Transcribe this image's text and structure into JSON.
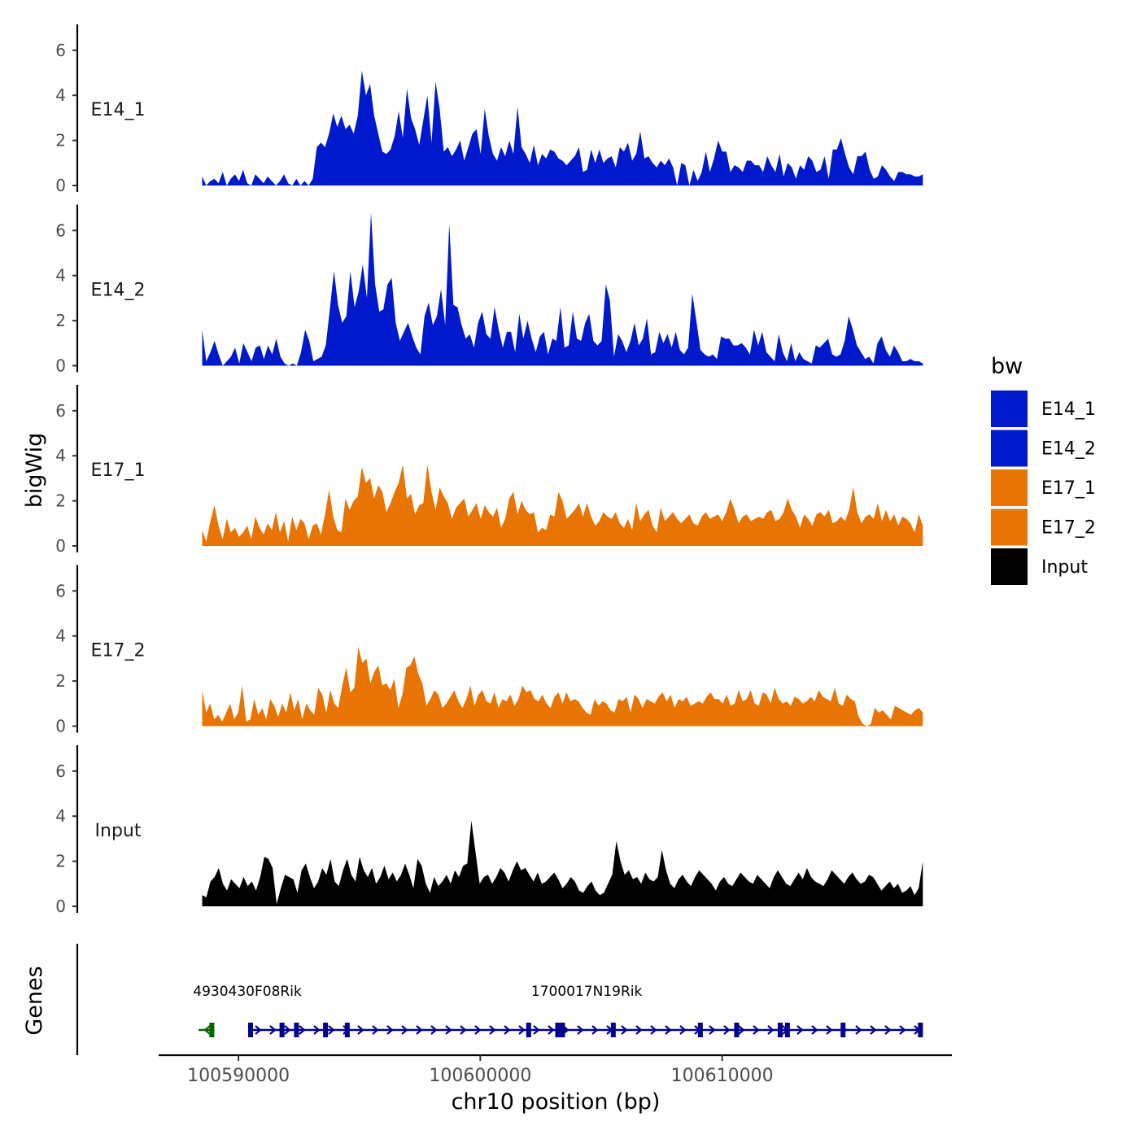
{
  "chart_data": {
    "type": "area",
    "ylabel": "bigWig",
    "xlabel": "chr10 position (bp)",
    "genes_label": "Genes",
    "ylim": [
      0,
      7
    ],
    "y_ticks": [
      "0",
      "2",
      "4",
      "6"
    ],
    "x_range": [
      100586700,
      100619500
    ],
    "x_ticks": [
      {
        "value": 100590000,
        "label": "100590000"
      },
      {
        "value": 100600000,
        "label": "100600000"
      },
      {
        "value": 100610000,
        "label": "100610000"
      }
    ],
    "data_start": 100588500,
    "data_end": 100618300,
    "legend": {
      "title": "bw",
      "entries": [
        {
          "name": "E14_1",
          "color": "#0019CC"
        },
        {
          "name": "E14_2",
          "color": "#0019CC"
        },
        {
          "name": "E17_1",
          "color": "#E87403"
        },
        {
          "name": "E17_2",
          "color": "#E87403"
        },
        {
          "name": "Input",
          "color": "#000000"
        }
      ]
    },
    "series": [
      {
        "name": "E14_1",
        "color": "#0019CC",
        "values": [
          0.4,
          0.0,
          0.2,
          0.3,
          0.1,
          0.6,
          0.0,
          0.3,
          0.5,
          0.2,
          0.7,
          0.1,
          0.0,
          0.5,
          0.3,
          0.1,
          0.4,
          0.2,
          0.0,
          0.2,
          0.5,
          0.1,
          0.0,
          0.3,
          0.0,
          0.2,
          0.0,
          0.3,
          1.7,
          1.9,
          1.7,
          2.3,
          3.2,
          2.6,
          3.1,
          2.5,
          2.7,
          2.3,
          3.1,
          5.1,
          4.0,
          4.5,
          3.1,
          2.3,
          1.5,
          1.4,
          1.6,
          2.2,
          3.3,
          2.1,
          4.3,
          3.0,
          2.5,
          1.8,
          2.9,
          4.0,
          1.9,
          4.6,
          3.4,
          1.5,
          1.7,
          1.3,
          1.6,
          2.0,
          1.1,
          1.7,
          2.3,
          2.5,
          1.4,
          3.4,
          2.2,
          1.4,
          1.1,
          1.7,
          1.3,
          2.0,
          1.4,
          3.5,
          1.7,
          1.4,
          1.0,
          1.8,
          0.9,
          1.4,
          1.2,
          1.6,
          1.5,
          1.2,
          1.1,
          0.9,
          1.1,
          1.3,
          1.7,
          0.6,
          0.7,
          1.6,
          1.0,
          1.6,
          1.0,
          1.2,
          1.3,
          0.8,
          1.7,
          1.5,
          1.9,
          1.1,
          1.4,
          2.4,
          1.2,
          1.3,
          1.0,
          0.8,
          1.1,
          0.9,
          1.2,
          0.8,
          0.0,
          1.0,
          0.9,
          0.0,
          0.7,
          0.2,
          0.6,
          1.5,
          0.6,
          1.2,
          2.0,
          1.5,
          1.5,
          0.6,
          0.9,
          0.8,
          0.6,
          1.1,
          1.1,
          0.9,
          0.9,
          0.6,
          1.3,
          0.9,
          0.6,
          1.4,
          0.4,
          1.0,
          0.8,
          0.3,
          0.9,
          0.7,
          1.3,
          1.1,
          0.6,
          0.7,
          1.3,
          0.3,
          1.6,
          1.6,
          2.1,
          1.4,
          0.8,
          0.5,
          1.3,
          1.3,
          1.5,
          0.7,
          0.3,
          0.4,
          0.9,
          0.7,
          0.4,
          0.2,
          0.6,
          0.6,
          0.5,
          0.5,
          0.4,
          0.4,
          0.5
        ]
      },
      {
        "name": "E14_2",
        "color": "#0019CC",
        "values": [
          1.6,
          0.2,
          0.6,
          1.1,
          0.5,
          0.0,
          0.2,
          0.4,
          0.8,
          0.1,
          1.0,
          0.6,
          0.2,
          0.8,
          0.9,
          0.3,
          0.9,
          0.5,
          1.2,
          0.4,
          0.1,
          0.0,
          0.1,
          0.0,
          0.6,
          1.6,
          1.1,
          0.2,
          0.3,
          0.4,
          0.9,
          2.5,
          4.2,
          2.7,
          1.9,
          2.2,
          4.2,
          2.6,
          3.3,
          4.5,
          3.0,
          6.8,
          3.6,
          2.4,
          2.5,
          3.6,
          3.9,
          1.9,
          1.1,
          1.5,
          1.9,
          1.3,
          0.8,
          0.5,
          2.2,
          2.8,
          1.8,
          2.2,
          3.4,
          1.8,
          6.3,
          2.7,
          2.6,
          1.8,
          1.2,
          1.4,
          0.8,
          1.9,
          2.4,
          1.4,
          1.2,
          2.6,
          1.6,
          0.8,
          1.5,
          1.5,
          0.6,
          2.3,
          1.2,
          2.0,
          1.2,
          0.6,
          1.3,
          1.5,
          0.5,
          1.2,
          1.1,
          2.6,
          0.8,
          0.9,
          2.4,
          1.2,
          1.1,
          1.9,
          2.3,
          1.1,
          0.9,
          1.1,
          3.6,
          2.9,
          0.4,
          1.4,
          1.1,
          0.6,
          1.1,
          1.9,
          0.9,
          1.2,
          2.1,
          0.5,
          0.6,
          1.5,
          1.0,
          1.4,
          0.8,
          1.5,
          0.7,
          0.5,
          0.8,
          3.2,
          2.0,
          0.7,
          0.5,
          0.4,
          0.5,
          0.3,
          1.3,
          1.2,
          1.2,
          0.9,
          0.9,
          1.0,
          0.8,
          0.5,
          1.6,
          0.9,
          1.5,
          0.6,
          0.4,
          0.2,
          1.4,
          0.6,
          0.2,
          1.0,
          0.2,
          0.6,
          0.3,
          0.2,
          0.1,
          0.9,
          0.8,
          1.0,
          1.2,
          0.5,
          0.4,
          0.5,
          1.1,
          2.2,
          1.6,
          0.9,
          0.6,
          0.3,
          0.4,
          0.1,
          1.0,
          1.3,
          0.7,
          0.4,
          0.9,
          0.6,
          0.2,
          0.2,
          0.3,
          0.2,
          0.2,
          0.1
        ]
      },
      {
        "name": "E17_1",
        "color": "#E87403",
        "values": [
          0.7,
          0.2,
          1.1,
          1.8,
          0.9,
          0.3,
          1.2,
          0.6,
          0.8,
          0.4,
          0.6,
          0.9,
          0.3,
          1.3,
          0.8,
          0.5,
          1.0,
          0.7,
          1.5,
          0.6,
          1.1,
          0.2,
          1.3,
          0.7,
          1.2,
          1.0,
          0.3,
          0.9,
          1.0,
          0.5,
          1.4,
          2.5,
          1.3,
          0.7,
          0.6,
          2.1,
          1.6,
          2.0,
          2.2,
          3.5,
          2.8,
          3.0,
          2.1,
          2.7,
          2.4,
          1.5,
          1.9,
          2.4,
          2.8,
          3.6,
          2.1,
          2.3,
          1.4,
          1.8,
          1.9,
          3.6,
          2.4,
          1.6,
          2.6,
          2.2,
          1.9,
          1.2,
          1.7,
          1.9,
          2.1,
          1.3,
          1.6,
          1.9,
          1.2,
          1.8,
          1.5,
          1.3,
          1.7,
          0.8,
          1.2,
          2.1,
          2.4,
          1.4,
          2.0,
          1.6,
          1.4,
          1.5,
          0.6,
          0.8,
          0.7,
          1.4,
          1.3,
          2.4,
          2.0,
          1.2,
          1.4,
          1.6,
          1.9,
          1.3,
          1.9,
          1.3,
          0.9,
          1.1,
          1.5,
          1.3,
          1.2,
          1.5,
          1.0,
          0.8,
          1.2,
          0.7,
          1.9,
          1.1,
          1.4,
          1.6,
          0.9,
          0.6,
          1.7,
          1.1,
          1.3,
          1.5,
          1.2,
          1.0,
          1.2,
          1.4,
          1.0,
          0.9,
          1.3,
          1.5,
          1.2,
          1.3,
          1.4,
          1.1,
          1.5,
          2.1,
          1.6,
          1.0,
          1.3,
          1.4,
          1.1,
          1.2,
          1.3,
          1.2,
          1.5,
          1.6,
          1.1,
          1.2,
          1.5,
          2.1,
          1.6,
          1.3,
          0.8,
          1.4,
          1.2,
          0.9,
          1.4,
          1.5,
          1.3,
          1.6,
          1.0,
          1.1,
          1.3,
          1.1,
          1.6,
          2.6,
          1.5,
          1.0,
          1.3,
          1.4,
          1.2,
          1.9,
          1.1,
          1.6,
          1.1,
          1.4,
          0.9,
          1.3,
          1.2,
          1.0,
          0.6,
          1.4,
          0.9
        ]
      },
      {
        "name": "E17_2",
        "color": "#E87403",
        "values": [
          1.6,
          0.6,
          1.0,
          0.3,
          0.5,
          0.2,
          0.6,
          1.0,
          0.3,
          0.6,
          1.8,
          0.2,
          0.3,
          1.2,
          0.5,
          0.8,
          0.3,
          1.2,
          0.9,
          0.4,
          1.0,
          0.6,
          1.5,
          0.7,
          1.2,
          0.3,
          1.0,
          0.7,
          0.5,
          1.7,
          1.4,
          0.6,
          1.6,
          1.0,
          0.8,
          1.8,
          2.6,
          1.5,
          1.7,
          3.5,
          2.8,
          3.0,
          1.9,
          2.4,
          2.7,
          1.8,
          1.9,
          1.6,
          2.1,
          0.8,
          1.4,
          2.6,
          2.7,
          3.1,
          2.3,
          1.9,
          0.9,
          1.2,
          1.6,
          1.4,
          0.8,
          1.0,
          1.3,
          1.6,
          1.1,
          0.8,
          1.2,
          1.8,
          0.9,
          1.4,
          1.6,
          1.1,
          1.0,
          1.5,
          0.8,
          1.2,
          1.1,
          1.4,
          0.9,
          1.2,
          1.8,
          1.5,
          1.6,
          1.2,
          1.1,
          1.4,
          1.0,
          0.8,
          1.3,
          1.5,
          1.0,
          1.5,
          1.1,
          1.2,
          1.1,
          0.8,
          0.6,
          0.5,
          1.2,
          0.9,
          1.1,
          1.0,
          0.7,
          0.6,
          1.2,
          1.1,
          1.3,
          0.6,
          1.4,
          1.2,
          0.8,
          1.2,
          1.1,
          1.0,
          1.3,
          1.5,
          1.1,
          1.4,
          0.8,
          1.2,
          1.1,
          1.3,
          0.9,
          1.0,
          1.1,
          1.0,
          1.3,
          1.5,
          1.2,
          1.2,
          1.0,
          1.4,
          0.9,
          1.0,
          1.6,
          1.1,
          1.2,
          1.6,
          1.0,
          0.9,
          1.5,
          1.4,
          1.0,
          1.7,
          1.2,
          1.0,
          1.1,
          0.9,
          1.3,
          1.2,
          1.0,
          1.1,
          1.3,
          1.1,
          1.6,
          1.3,
          1.2,
          1.1,
          1.7,
          1.0,
          0.9,
          1.4,
          1.2,
          1.1,
          0.4,
          0.1,
          0.0,
          0.1,
          0.8,
          0.6,
          0.7,
          0.5,
          0.3,
          0.9,
          0.8,
          0.7,
          0.6,
          0.5,
          0.7,
          0.8,
          0.6
        ]
      },
      {
        "name": "Input",
        "color": "#000000",
        "values": [
          0.5,
          0.4,
          1.1,
          1.3,
          1.7,
          1.0,
          0.7,
          1.2,
          1.0,
          0.8,
          1.3,
          0.9,
          1.1,
          0.7,
          1.3,
          2.2,
          2.1,
          1.7,
          0.1,
          0.8,
          1.4,
          1.3,
          1.2,
          0.6,
          1.6,
          1.9,
          1.3,
          0.8,
          1.1,
          1.7,
          1.4,
          2.1,
          1.1,
          0.9,
          1.6,
          2.1,
          1.4,
          1.1,
          2.2,
          1.6,
          1.3,
          1.7,
          1.0,
          1.3,
          1.8,
          1.2,
          1.5,
          1.1,
          1.4,
          1.9,
          1.4,
          0.8,
          2.1,
          1.8,
          1.0,
          0.6,
          1.3,
          0.9,
          1.1,
          1.4,
          1.0,
          1.6,
          1.3,
          1.8,
          1.9,
          3.8,
          2.4,
          1.0,
          1.3,
          1.4,
          1.0,
          1.3,
          1.7,
          1.5,
          1.1,
          1.6,
          2.0,
          1.6,
          1.7,
          1.4,
          1.1,
          1.5,
          1.0,
          1.1,
          1.3,
          1.5,
          1.2,
          0.8,
          1.0,
          1.3,
          1.1,
          0.7,
          0.6,
          0.9,
          1.1,
          0.7,
          0.5,
          0.6,
          1.0,
          1.4,
          2.9,
          2.0,
          1.4,
          1.6,
          1.2,
          1.3,
          1.0,
          1.5,
          1.2,
          1.1,
          1.3,
          2.5,
          1.6,
          1.0,
          0.8,
          1.2,
          1.4,
          1.1,
          0.9,
          1.3,
          1.6,
          1.4,
          1.2,
          1.0,
          0.7,
          1.1,
          1.3,
          1.0,
          0.9,
          1.2,
          1.5,
          1.3,
          1.1,
          1.0,
          1.4,
          1.2,
          1.0,
          0.8,
          1.3,
          1.6,
          1.3,
          1.0,
          0.9,
          1.2,
          1.5,
          1.2,
          1.7,
          1.3,
          1.1,
          1.0,
          0.9,
          1.2,
          1.6,
          1.4,
          1.2,
          1.0,
          1.3,
          1.5,
          1.2,
          1.0,
          1.1,
          1.4,
          1.3,
          1.0,
          0.7,
          0.9,
          1.1,
          0.8,
          1.0,
          0.6,
          0.7,
          0.9,
          0.5,
          0.8,
          2.0
        ]
      }
    ],
    "genes": [
      {
        "name": "4930430F08Rik",
        "label": "4930430F08Rik",
        "start": 100588350,
        "end": 100589000,
        "strand": "-",
        "color": "#006400",
        "exons": [
          100588900
        ]
      },
      {
        "name": "1700017N19Rik",
        "label": "1700017N19Rik",
        "start": 100590500,
        "end": 100618300,
        "strand": "+",
        "color": "#00008B",
        "exons": [
          100590500,
          100591800,
          100592400,
          100593600,
          100594500,
          100602000,
          100603200,
          100603400,
          100605500,
          100609100,
          100610600,
          100612400,
          100612700,
          100615000,
          100618200
        ]
      }
    ]
  }
}
